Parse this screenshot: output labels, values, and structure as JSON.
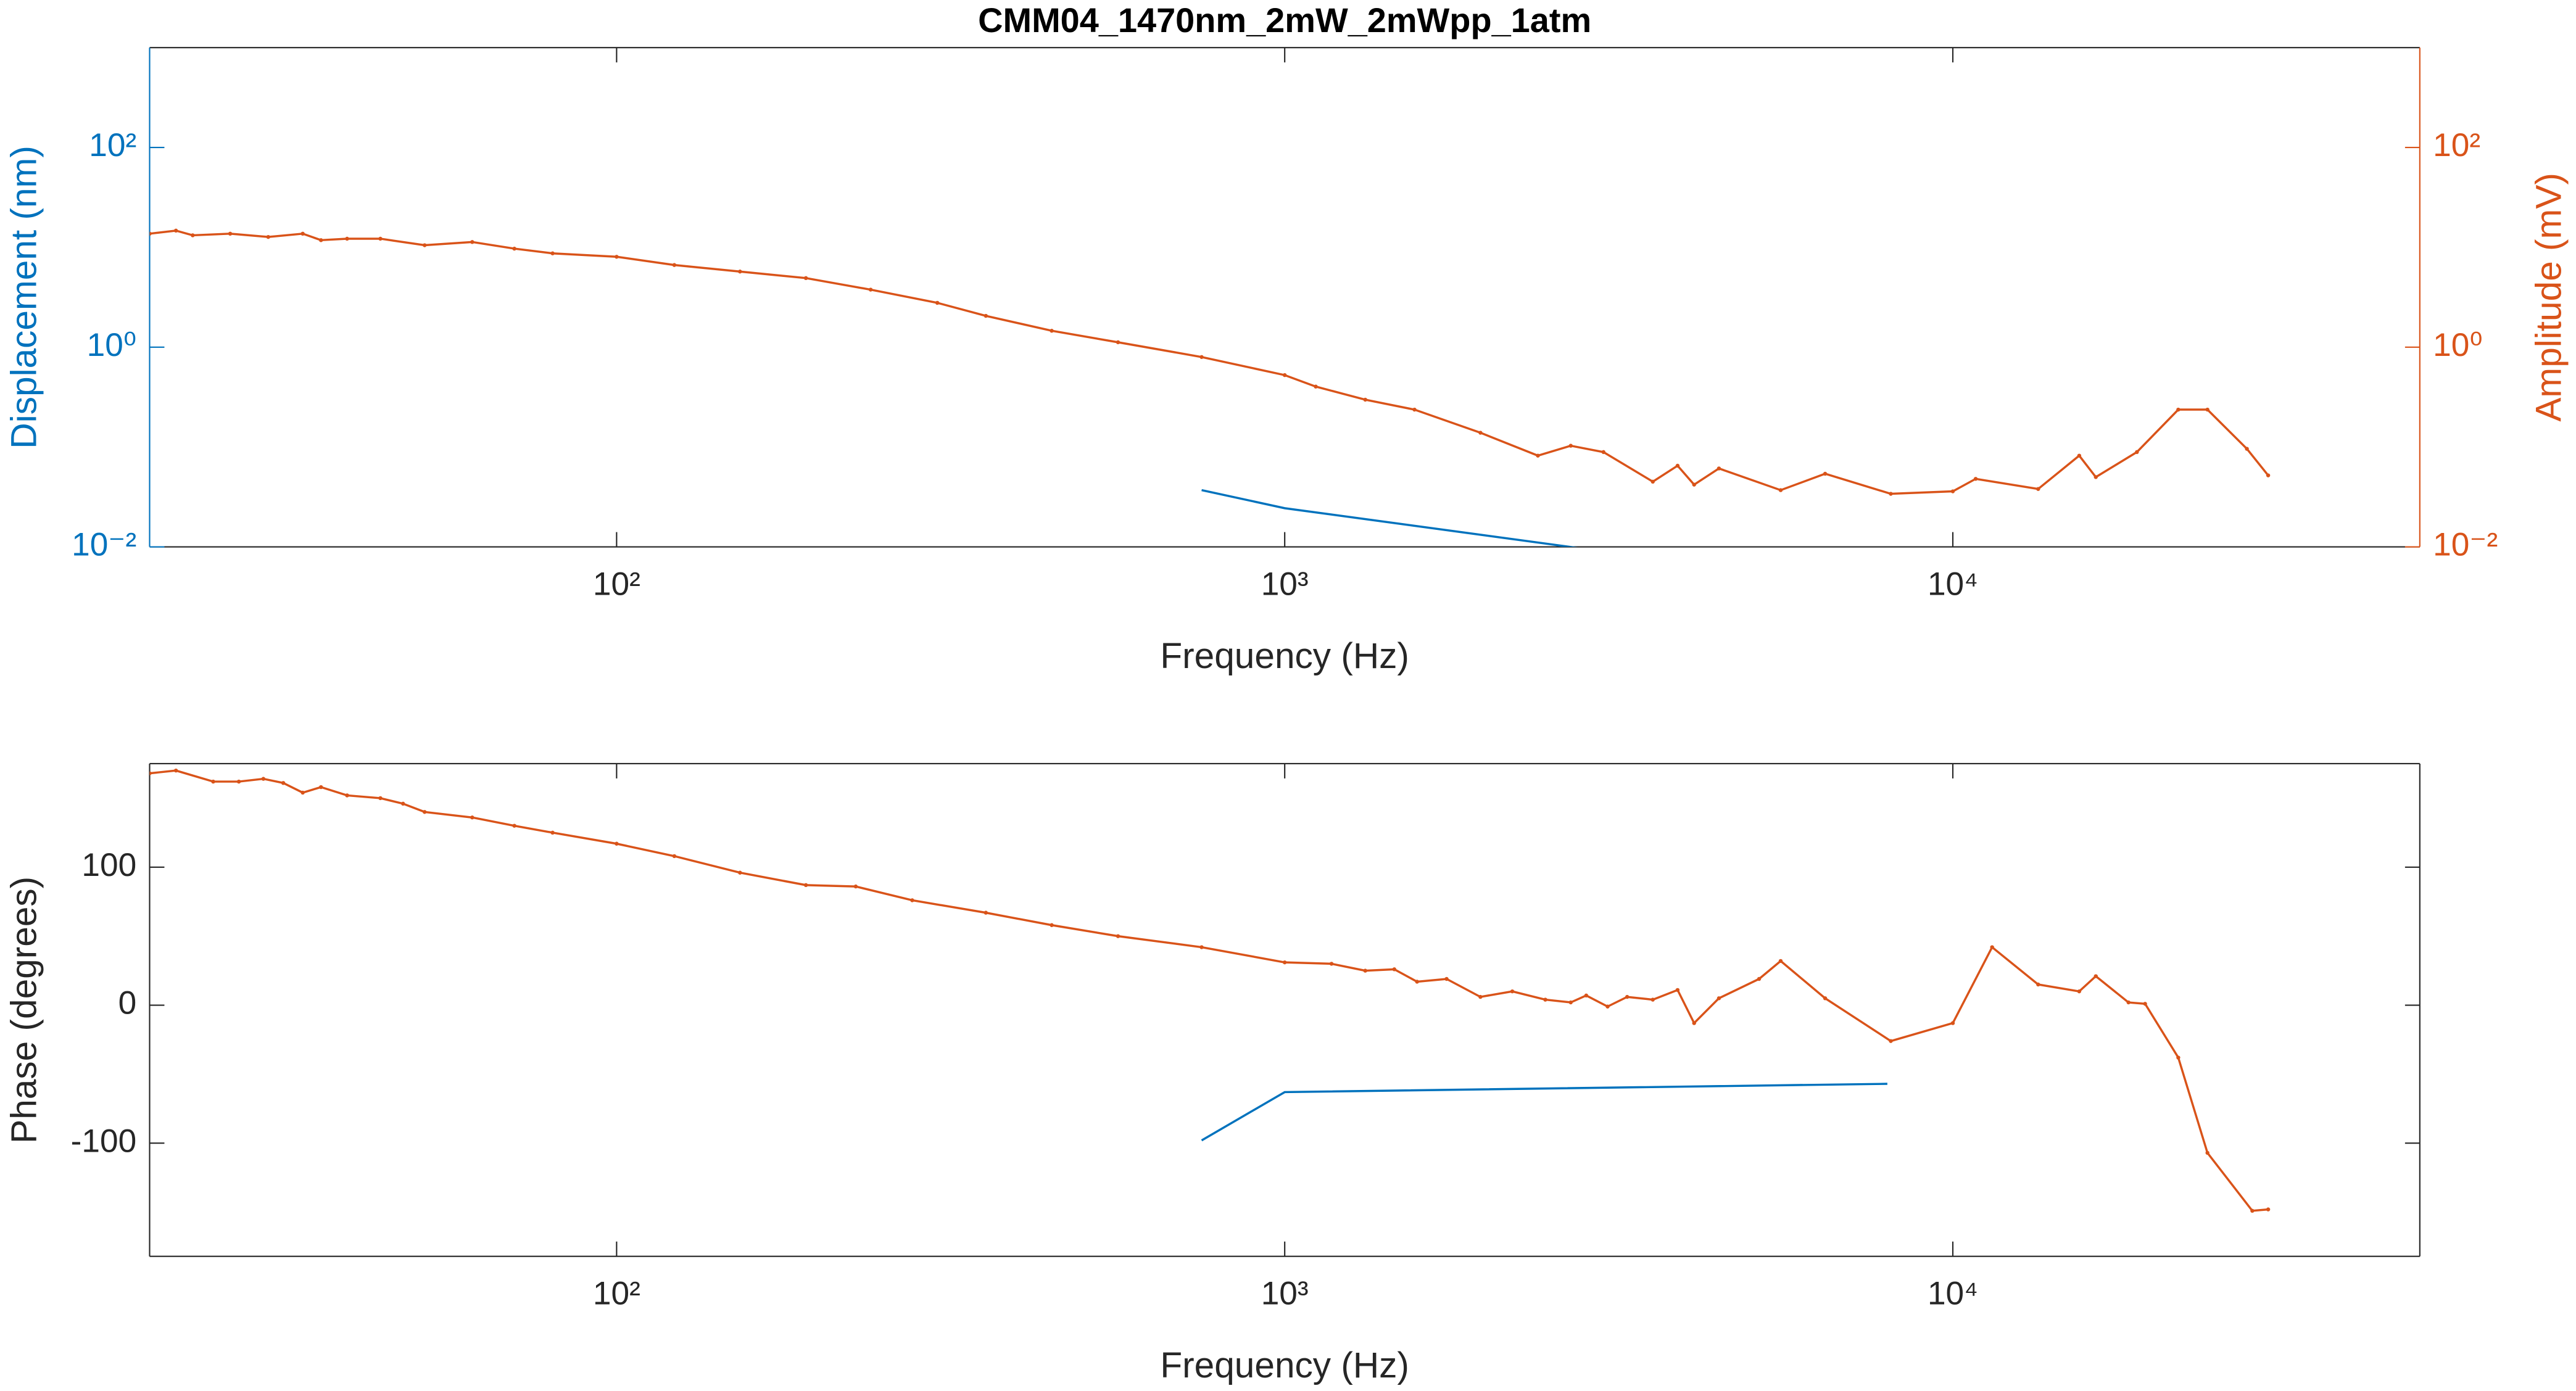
{
  "chart_data": [
    {
      "type": "line",
      "title": "CMM04_1470nm_2mW_2mWpp_1atm",
      "xlabel": "Frequency (Hz)",
      "ylabel": "Displacement (nm)",
      "y2label": "Amplitude (mV)",
      "xscale": "log",
      "yscale": "log",
      "y2scale": "log",
      "grid": false,
      "xlim": [
        20,
        50000
      ],
      "xticks": [
        {
          "value": 100,
          "label": "10²"
        },
        {
          "value": 1000,
          "label": "10³"
        },
        {
          "value": 10000,
          "label": "10⁴"
        }
      ],
      "ylim": [
        0.01,
        1000
      ],
      "yticks": [
        {
          "value": 0.01,
          "label": "10⁻²"
        },
        {
          "value": 1,
          "label": "10⁰"
        },
        {
          "value": 100,
          "label": "10²"
        }
      ],
      "ycolor": "#0072BD",
      "y2lim": [
        0.01,
        1000
      ],
      "y2ticks": [
        {
          "value": 0.01,
          "label": "10⁻²"
        },
        {
          "value": 1,
          "label": "10⁰"
        },
        {
          "value": 100,
          "label": "10²"
        }
      ],
      "y2color": "#D95319",
      "series": [
        {
          "color": "#0072BD",
          "axis": "y",
          "marker": false,
          "x": [
            751,
            1000,
            8000
          ],
          "values": [
            0.037,
            0.0244,
            0.0037
          ]
        },
        {
          "color": "#D95319",
          "axis": "y2",
          "marker": true,
          "x": [
            20,
            21.9,
            23.2,
            26.4,
            30.1,
            33.9,
            36.1,
            39.5,
            44.3,
            51.6,
            60.8,
            70.3,
            80.2,
            100,
            122,
            153,
            192,
            240,
            302,
            357,
            448,
            563,
            751,
            1000,
            1113,
            1320,
            1564,
            1963,
            2393,
            2680,
            3000,
            3556,
            3873,
            4100,
            4466,
            5525,
            6440,
            8076,
            10000,
            10820,
            13420,
            15460,
            16370,
            18860,
            21750,
            24050,
            27550,
            29650
          ],
          "values": [
            13.7,
            14.7,
            13.2,
            13.7,
            12.7,
            13.7,
            11.8,
            12.2,
            12.2,
            10.5,
            11.3,
            9.7,
            8.7,
            8.04,
            6.65,
            5.72,
            4.92,
            3.77,
            2.78,
            2.06,
            1.46,
            1.12,
            0.797,
            0.525,
            0.403,
            0.298,
            0.237,
            0.139,
            0.082,
            0.103,
            0.089,
            0.045,
            0.065,
            0.042,
            0.061,
            0.037,
            0.054,
            0.034,
            0.036,
            0.048,
            0.038,
            0.082,
            0.05,
            0.089,
            0.237,
            0.237,
            0.096,
            0.052
          ]
        }
      ]
    },
    {
      "type": "line",
      "xlabel": "Frequency (Hz)",
      "ylabel": "Phase (degrees)",
      "xscale": "log",
      "yscale": "linear",
      "grid": false,
      "xlim": [
        20,
        50000
      ],
      "xticks": [
        {
          "value": 100,
          "label": "10²"
        },
        {
          "value": 1000,
          "label": "10³"
        },
        {
          "value": 10000,
          "label": "10⁴"
        }
      ],
      "ylim": [
        -182,
        175
      ],
      "yticks": [
        -100,
        0,
        100
      ],
      "series": [
        {
          "color": "#0072BD",
          "axis": "y",
          "marker": false,
          "x": [
            751,
            1000,
            7980
          ],
          "values": [
            -98,
            -63,
            -57
          ]
        },
        {
          "color": "#D95319",
          "axis": "y",
          "marker": true,
          "x": [
            20,
            21.9,
            24.9,
            27.2,
            29.6,
            31.7,
            33.9,
            36.1,
            39.5,
            44.3,
            47.9,
            51.6,
            60.8,
            70.3,
            80.2,
            100,
            122,
            153,
            192,
            228,
            277,
            357,
            448,
            563,
            751,
            1000,
            1175,
            1320,
            1459,
            1578,
            1747,
            1963,
            2191,
            2455,
            2680,
            2827,
            3043,
            3255,
            3556,
            3873,
            4100,
            4466,
            5129,
            5525,
            6440,
            8076,
            10000,
            11450,
            13420,
            15460,
            16370,
            18320,
            19400,
            21750,
            24050,
            28070,
            29650
          ],
          "values": [
            168,
            170,
            162,
            162,
            164,
            161,
            154,
            158,
            152,
            150,
            146,
            140,
            136,
            130,
            125,
            117,
            108,
            96,
            87,
            86,
            76,
            67,
            58,
            50,
            42,
            31,
            30,
            25,
            26,
            17,
            19,
            6,
            10,
            4,
            2,
            7,
            -1,
            6,
            4,
            11,
            -13,
            5,
            19,
            32,
            5,
            -26,
            -13,
            42,
            15,
            10,
            21,
            2,
            1,
            -38,
            -107,
            -149,
            -148
          ]
        }
      ]
    }
  ]
}
